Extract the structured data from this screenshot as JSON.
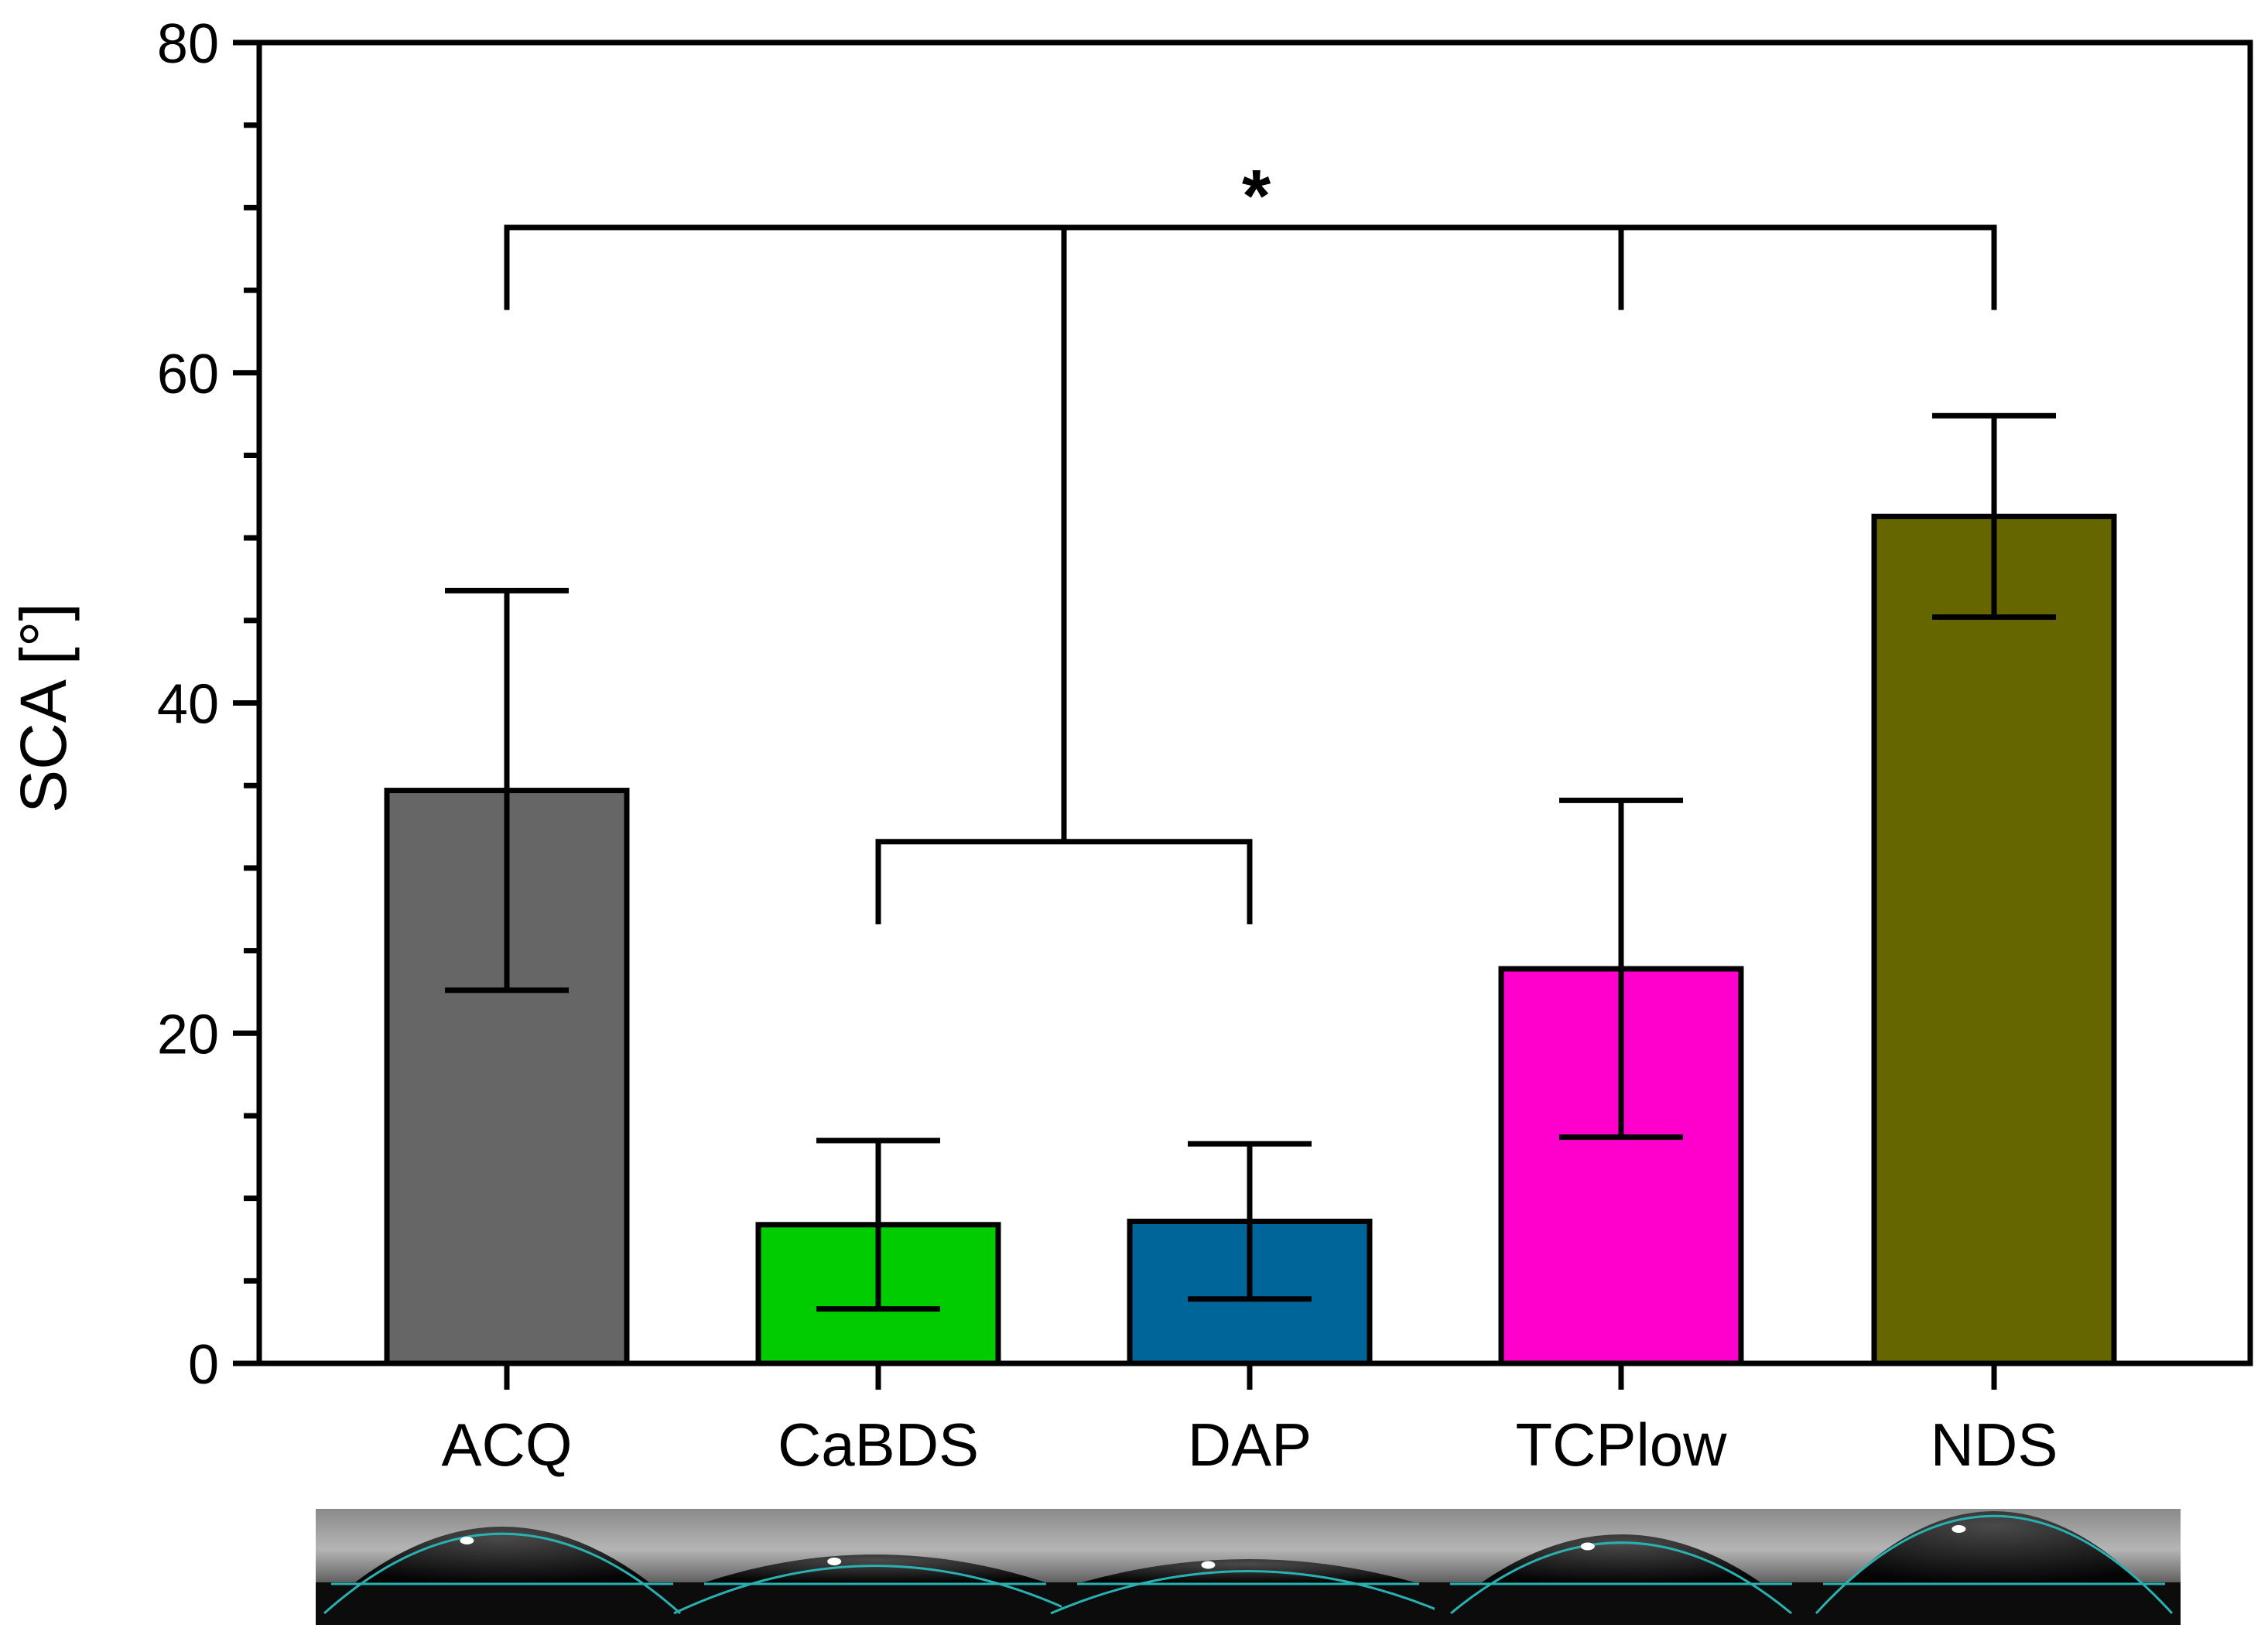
{
  "chart_data": {
    "type": "bar",
    "title": "",
    "xlabel": "",
    "ylabel": "SCA [°]",
    "ylim": [
      0,
      80
    ],
    "yticks": [
      0,
      20,
      40,
      60,
      80
    ],
    "minor_tick_step": 5,
    "grid": false,
    "categories": [
      "ACQ",
      "CaBDS",
      "DAP",
      "TCPlow",
      "NDS"
    ],
    "values": [
      34.7,
      8.4,
      8.6,
      23.9,
      51.3
    ],
    "errors": [
      12.1,
      5.1,
      4.7,
      10.2,
      6.1
    ],
    "colors": [
      "#666666",
      "#00cc00",
      "#006699",
      "#ff00cc",
      "#666600"
    ],
    "significance": {
      "label": "*",
      "level": 68.8,
      "groups": [
        {
          "members": [
            "ACQ"
          ],
          "drop_to": 63.8
        },
        {
          "members": [
            "CaBDS",
            "DAP"
          ],
          "level": 31.6,
          "drop_to": 26.6
        },
        {
          "members": [
            "TCPlow"
          ],
          "drop_to": 63.8
        },
        {
          "members": [
            "NDS"
          ],
          "drop_to": 63.8
        }
      ]
    },
    "droplet_images": [
      "ACQ droplet",
      "CaBDS droplet",
      "DAP droplet",
      "TCPlow droplet",
      "NDS droplet"
    ]
  }
}
